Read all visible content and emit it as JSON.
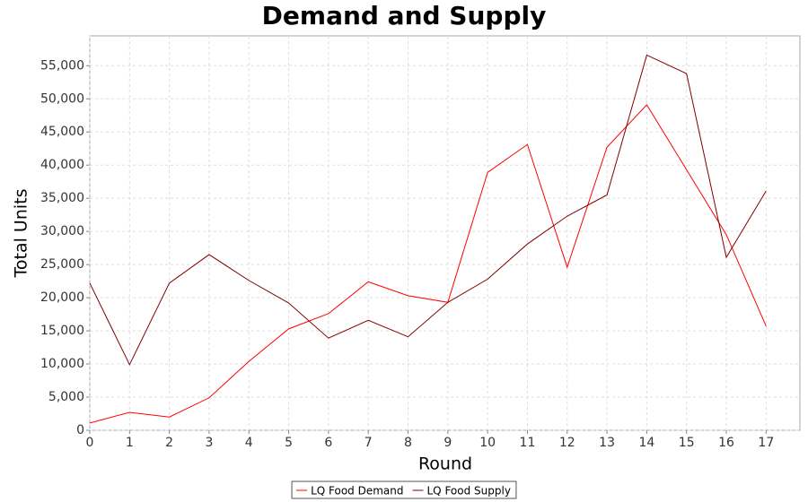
{
  "chart_data": {
    "type": "line",
    "title": "Demand and Supply",
    "x_label": "Round",
    "y_label": "Total Units",
    "x": [
      0,
      1,
      2,
      3,
      4,
      5,
      6,
      7,
      8,
      9,
      10,
      11,
      12,
      13,
      14,
      15,
      16,
      17
    ],
    "series": [
      {
        "name": "LQ Food Demand",
        "color": "#ff0000",
        "values": [
          1100,
          2700,
          2000,
          4900,
          10400,
          15300,
          17600,
          22400,
          20300,
          19300,
          38900,
          43100,
          24600,
          42700,
          49100,
          39300,
          29500,
          15700
        ]
      },
      {
        "name": "LQ Food Supply",
        "color": "#800000",
        "values": [
          22200,
          9900,
          22200,
          26500,
          22600,
          19200,
          13900,
          16600,
          14100,
          19300,
          22800,
          28100,
          32300,
          35500,
          56600,
          53800,
          26100,
          36100
        ]
      }
    ],
    "xlim": [
      0,
      17.85
    ],
    "xticks": [
      0,
      1,
      2,
      3,
      4,
      5,
      6,
      7,
      8,
      9,
      10,
      11,
      12,
      13,
      14,
      15,
      16,
      17
    ],
    "ylim": [
      0,
      59500
    ],
    "yticks": [
      0,
      {
        "value": 5000,
        "label": "5,000"
      },
      {
        "value": 10000,
        "label": "10,000"
      },
      {
        "value": 15000,
        "label": "15,000"
      },
      {
        "value": 20000,
        "label": "20,000"
      },
      {
        "value": 25000,
        "label": "25,000"
      },
      {
        "value": 30000,
        "label": "30,000"
      },
      {
        "value": 35000,
        "label": "35,000"
      },
      {
        "value": 40000,
        "label": "40,000"
      },
      {
        "value": 45000,
        "label": "45,000"
      },
      {
        "value": 50000,
        "label": "50,000"
      },
      {
        "value": 55000,
        "label": "55,000"
      }
    ],
    "grid": true,
    "legend": "bottom"
  }
}
